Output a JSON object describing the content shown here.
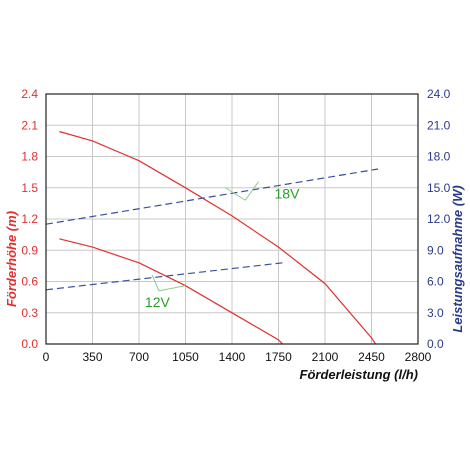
{
  "chart_data": {
    "type": "line",
    "xlabel": "Förderleistung (l/h)",
    "ylabel_left": "Förderhöhe (m)",
    "ylabel_right": "Leistungsaufnahme (W)",
    "xlim": [
      0,
      2800
    ],
    "ylim_left": [
      0,
      2.4
    ],
    "ylim_right": [
      0,
      24.0
    ],
    "x_ticks": [
      "0",
      "350",
      "700",
      "1050",
      "1400",
      "1750",
      "2100",
      "2450",
      "2800"
    ],
    "y_ticks_left": [
      "0.0",
      "0.3",
      "0.6",
      "0.9",
      "1.2",
      "1.5",
      "1.8",
      "2.1",
      "2.4"
    ],
    "y_ticks_right": [
      "0.0",
      "3.0",
      "6.0",
      "9.0",
      "12.0",
      "15.0",
      "18.0",
      "21.0",
      "24.0"
    ],
    "grid": true,
    "colors": {
      "head": "#e03030",
      "power": "#3a4f9c",
      "annotation": "#2aa02a",
      "left_axis": "#e03030",
      "right_axis": "#2b3b8c",
      "grid": "#c8c8c8"
    },
    "series": [
      {
        "axis": "left",
        "style": "solid",
        "x": [
          100,
          350,
          700,
          1050,
          1400,
          1750,
          2100,
          2450,
          2480
        ],
        "values": [
          2.04,
          1.95,
          1.76,
          1.5,
          1.23,
          0.93,
          0.58,
          0.06,
          0.0
        ]
      },
      {
        "axis": "left",
        "style": "solid",
        "x": [
          100,
          350,
          700,
          1050,
          1400,
          1750,
          1780
        ],
        "values": [
          1.01,
          0.93,
          0.78,
          0.56,
          0.3,
          0.04,
          0.0
        ]
      },
      {
        "axis": "right",
        "style": "dashed",
        "x": [
          0,
          2500
        ],
        "values": [
          11.5,
          16.8
        ]
      },
      {
        "axis": "right",
        "style": "dashed",
        "x": [
          0,
          1780
        ],
        "values": [
          5.2,
          7.8
        ]
      }
    ],
    "annotations": [
      {
        "text": "18V",
        "anchor": [
          1500,
          13.8
        ],
        "targets": [
          [
            1350,
            15.0
          ],
          [
            1600,
            15.6
          ]
        ],
        "label_at": [
          1750,
          13.8
        ]
      },
      {
        "text": "12V",
        "anchor": [
          850,
          5.1
        ],
        "targets": [
          [
            800,
            6.6
          ],
          [
            1050,
            5.6
          ]
        ],
        "label_at": [
          850,
          5.1
        ]
      }
    ]
  }
}
